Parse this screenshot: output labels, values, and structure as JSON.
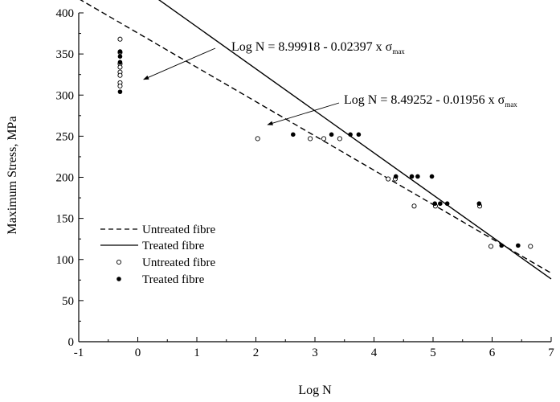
{
  "chart_data": {
    "type": "scatter",
    "title": "",
    "xlabel": "Log N",
    "ylabel": "Maximum Stress, MPa",
    "xlim": [
      -1,
      7
    ],
    "ylim": [
      0,
      400
    ],
    "x_ticks": [
      -1,
      0,
      1,
      2,
      3,
      4,
      5,
      6,
      7
    ],
    "y_ticks": [
      0,
      50,
      100,
      150,
      200,
      250,
      300,
      350,
      400
    ],
    "grid": false,
    "legend_position": "bottom-left",
    "legend": [
      {
        "label": "Untreated fibre",
        "style": "dashed-line"
      },
      {
        "label": "Treated fibre",
        "style": "solid-line"
      },
      {
        "label": "Untreated fibre",
        "style": "open-circle"
      },
      {
        "label": "Treated fibre",
        "style": "filled-circle"
      }
    ],
    "annotations": [
      {
        "text": "Log N = 8.99918 - 0.02397 x σ",
        "subscript": "max",
        "points_to": [
          0.1,
          319
        ]
      },
      {
        "text": "Log N = 8.49252 - 0.01956 x σ",
        "subscript": "max",
        "points_to": [
          2.2,
          264
        ]
      }
    ],
    "fit_lines": [
      {
        "name": "Untreated fibre",
        "style": "dashed",
        "intercept": 8.99918,
        "slope": -0.02397,
        "x_range": [
          -1,
          7
        ]
      },
      {
        "name": "Treated fibre",
        "style": "solid",
        "intercept": 8.49252,
        "slope": -0.01956,
        "x_range": [
          -1,
          7
        ]
      }
    ],
    "series": [
      {
        "name": "Untreated fibre",
        "marker": "open-circle",
        "points": [
          [
            -0.3,
            368
          ],
          [
            -0.3,
            352
          ],
          [
            -0.3,
            338
          ],
          [
            -0.3,
            334
          ],
          [
            -0.3,
            328
          ],
          [
            -0.3,
            324
          ],
          [
            -0.3,
            315
          ],
          [
            -0.3,
            311
          ],
          [
            2.03,
            247
          ],
          [
            2.92,
            247
          ],
          [
            3.15,
            247
          ],
          [
            3.42,
            247
          ],
          [
            4.24,
            198
          ],
          [
            4.36,
            198
          ],
          [
            4.68,
            165
          ],
          [
            5.04,
            165
          ],
          [
            5.79,
            165
          ],
          [
            5.98,
            116
          ],
          [
            6.65,
            116
          ]
        ]
      },
      {
        "name": "Treated fibre",
        "marker": "filled-circle",
        "points": [
          [
            -0.3,
            353
          ],
          [
            -0.3,
            347
          ],
          [
            -0.3,
            340
          ],
          [
            -0.3,
            304
          ],
          [
            2.63,
            252
          ],
          [
            3.28,
            252
          ],
          [
            3.6,
            252
          ],
          [
            3.74,
            252
          ],
          [
            4.37,
            201
          ],
          [
            4.64,
            201
          ],
          [
            4.74,
            201
          ],
          [
            4.98,
            201
          ],
          [
            5.03,
            168
          ],
          [
            5.12,
            168
          ],
          [
            5.24,
            168
          ],
          [
            5.78,
            168
          ],
          [
            6.16,
            117
          ],
          [
            6.44,
            117
          ]
        ]
      }
    ]
  }
}
